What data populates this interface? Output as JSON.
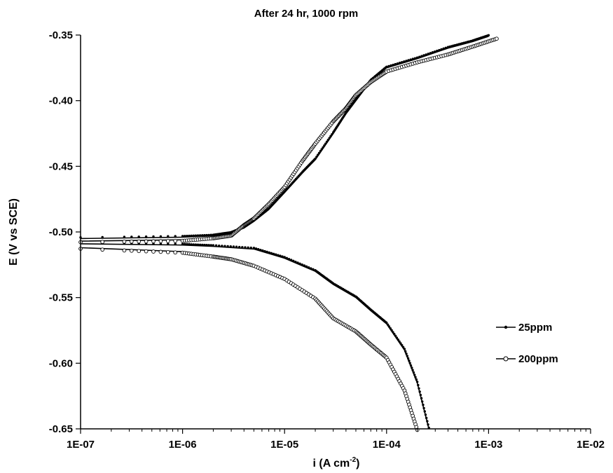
{
  "chart_data": {
    "type": "scatter",
    "title": "After 24 hr, 1000 rpm",
    "xlabel": "i (A cm",
    "xlabel_sup": "-2",
    "xlabel_close": ")",
    "ylabel": "E (V vs SCE)",
    "x_scale": "log",
    "xlim": [
      1e-07,
      0.01
    ],
    "ylim": [
      -0.65,
      -0.35
    ],
    "x_ticks": [
      1e-07,
      1e-06,
      1e-05,
      0.0001,
      0.001,
      0.01
    ],
    "x_tick_labels": [
      "1E-07",
      "1E-06",
      "1E-05",
      "1E-04",
      "1E-03",
      "1E-02"
    ],
    "y_ticks": [
      -0.35,
      -0.4,
      -0.45,
      -0.5,
      -0.55,
      -0.6,
      -0.65
    ],
    "y_tick_labels": [
      "-0.35",
      "-0.40",
      "-0.45",
      "-0.50",
      "-0.55",
      "-0.60",
      "-0.65"
    ],
    "grid": false,
    "legend_position": "right",
    "series": [
      {
        "name": "25ppm",
        "marker": "filled-dot",
        "anodic": [
          [
            1e-07,
            -0.505
          ],
          [
            1e-06,
            -0.504
          ],
          [
            2e-06,
            -0.503
          ],
          [
            3e-06,
            -0.501
          ],
          [
            4e-06,
            -0.497
          ],
          [
            5e-06,
            -0.492
          ],
          [
            7e-06,
            -0.483
          ],
          [
            1e-05,
            -0.47
          ],
          [
            1.5e-05,
            -0.455
          ],
          [
            2e-05,
            -0.445
          ],
          [
            3e-05,
            -0.425
          ],
          [
            4e-05,
            -0.41
          ],
          [
            5e-05,
            -0.4
          ],
          [
            7e-05,
            -0.385
          ],
          [
            0.0001,
            -0.375
          ],
          [
            0.0002,
            -0.368
          ],
          [
            0.0004,
            -0.36
          ],
          [
            0.0007,
            -0.355
          ],
          [
            0.001,
            -0.351
          ]
        ],
        "cathodic": [
          [
            1e-07,
            -0.509
          ],
          [
            1e-06,
            -0.51
          ],
          [
            2e-06,
            -0.511
          ],
          [
            5e-06,
            -0.513
          ],
          [
            1e-05,
            -0.52
          ],
          [
            2e-05,
            -0.53
          ],
          [
            3e-05,
            -0.54
          ],
          [
            5e-05,
            -0.55
          ],
          [
            7e-05,
            -0.56
          ],
          [
            0.0001,
            -0.57
          ],
          [
            0.00015,
            -0.59
          ],
          [
            0.0002,
            -0.615
          ],
          [
            0.00026,
            -0.65
          ]
        ]
      },
      {
        "name": "200ppm",
        "marker": "open-circle",
        "anodic": [
          [
            1e-07,
            -0.507
          ],
          [
            1e-06,
            -0.506
          ],
          [
            2e-06,
            -0.504
          ],
          [
            3e-06,
            -0.502
          ],
          [
            4e-06,
            -0.494
          ],
          [
            5e-06,
            -0.489
          ],
          [
            7e-06,
            -0.478
          ],
          [
            1e-05,
            -0.465
          ],
          [
            1.5e-05,
            -0.445
          ],
          [
            2e-05,
            -0.432
          ],
          [
            3e-05,
            -0.415
          ],
          [
            4e-05,
            -0.405
          ],
          [
            5e-05,
            -0.395
          ],
          [
            7e-05,
            -0.385
          ],
          [
            0.0001,
            -0.377
          ],
          [
            0.0002,
            -0.37
          ],
          [
            0.0004,
            -0.364
          ],
          [
            0.0007,
            -0.358
          ],
          [
            0.0012,
            -0.352
          ]
        ],
        "cathodic": [
          [
            1e-07,
            -0.512
          ],
          [
            1e-06,
            -0.515
          ],
          [
            2e-06,
            -0.518
          ],
          [
            3e-06,
            -0.52
          ],
          [
            5e-06,
            -0.525
          ],
          [
            1e-05,
            -0.535
          ],
          [
            2e-05,
            -0.55
          ],
          [
            3e-05,
            -0.565
          ],
          [
            5e-05,
            -0.575
          ],
          [
            7e-05,
            -0.585
          ],
          [
            0.0001,
            -0.595
          ],
          [
            0.00015,
            -0.62
          ],
          [
            0.0002,
            -0.65
          ]
        ]
      }
    ]
  }
}
